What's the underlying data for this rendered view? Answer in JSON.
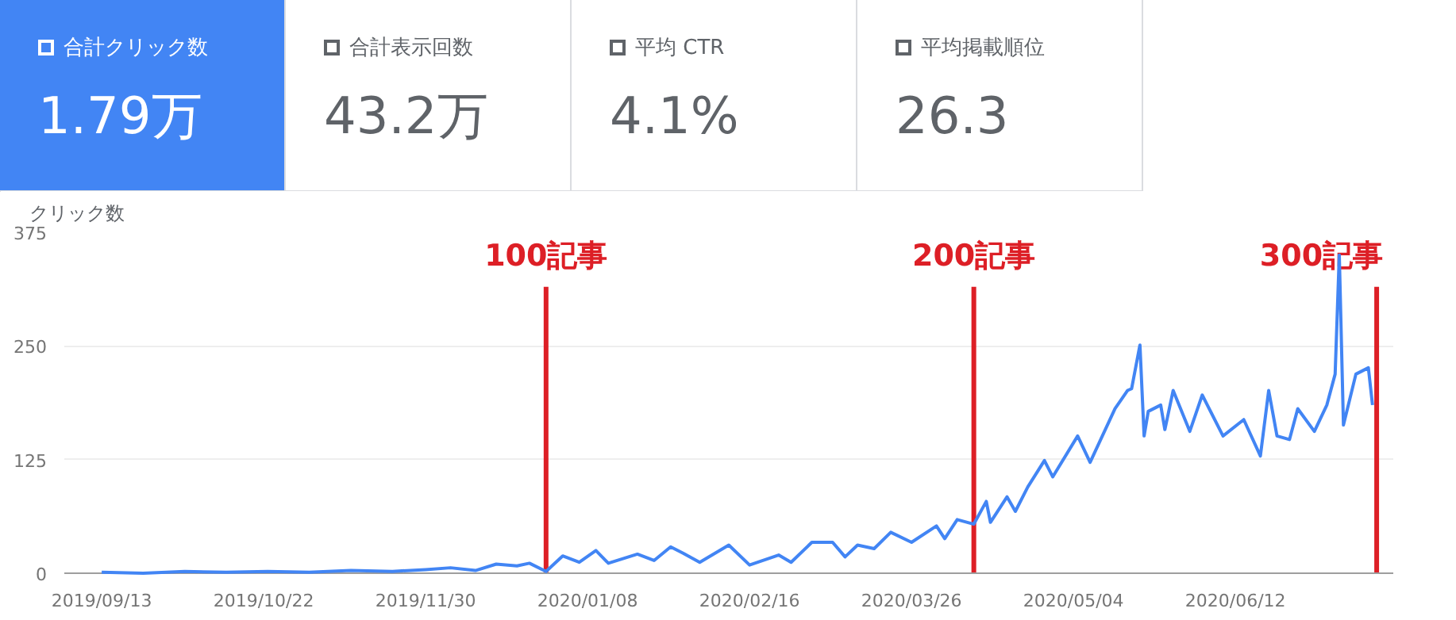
{
  "chart_data": [
    {
      "type": "other",
      "annotations": [
        "合計クリック数",
        "1.79万",
        "合計表示回数",
        "43.2万",
        "平均 CTR",
        "4.1%",
        "平均掲載順位",
        "26.3"
      ]
    },
    {
      "type": "line",
      "ylabel": "クリック数",
      "x": [
        "2019-09-13",
        "2019-09-23",
        "2019-10-03",
        "2019-10-13",
        "2019-10-23",
        "2019-11-02",
        "2019-11-12",
        "2019-11-22",
        "2019-11-30",
        "2019-12-06",
        "2019-12-12",
        "2019-12-17",
        "2019-12-22",
        "2019-12-25",
        "2019-12-29",
        "2020-01-02",
        "2020-01-06",
        "2020-01-10",
        "2020-01-13",
        "2020-01-20",
        "2020-01-24",
        "2020-01-28",
        "2020-01-31",
        "2020-02-04",
        "2020-02-11",
        "2020-02-16",
        "2020-02-23",
        "2020-02-26",
        "2020-03-02",
        "2020-03-07",
        "2020-03-10",
        "2020-03-13",
        "2020-03-17",
        "2020-03-21",
        "2020-03-26",
        "2020-04-01",
        "2020-04-03",
        "2020-04-06",
        "2020-04-10",
        "2020-04-13",
        "2020-04-14",
        "2020-04-18",
        "2020-04-20",
        "2020-04-23",
        "2020-04-27",
        "2020-04-29",
        "2020-05-05",
        "2020-05-08",
        "2020-05-14",
        "2020-05-17",
        "2020-05-18",
        "2020-05-20",
        "2020-05-21",
        "2020-05-22",
        "2020-05-25",
        "2020-05-26",
        "2020-05-28",
        "2020-06-01",
        "2020-06-04",
        "2020-06-09",
        "2020-06-14",
        "2020-06-18",
        "2020-06-20",
        "2020-06-22",
        "2020-06-25",
        "2020-06-27",
        "2020-07-01",
        "2020-07-04",
        "2020-07-06",
        "2020-07-07",
        "2020-07-08",
        "2020-07-11",
        "2020-07-14",
        "2020-07-15"
      ],
      "series": [
        {
          "color": "#4285f4",
          "values": [
            1,
            0,
            2,
            1,
            2,
            1,
            3,
            2,
            4,
            6,
            3,
            10,
            8,
            11,
            2,
            19,
            12,
            25,
            11,
            21,
            14,
            29,
            22,
            12,
            31,
            9,
            20,
            12,
            34,
            34,
            18,
            31,
            27,
            45,
            34,
            52,
            38,
            59,
            54,
            79,
            56,
            84,
            68,
            95,
            124,
            106,
            151,
            122,
            181,
            201,
            203,
            251,
            151,
            178,
            185,
            158,
            201,
            156,
            196,
            151,
            169,
            129,
            201,
            151,
            147,
            181,
            156,
            185,
            219,
            350,
            163,
            219,
            226,
            185
          ]
        }
      ],
      "xlim": [
        "2019-09-04",
        "2020-07-20"
      ],
      "xticks": [
        {
          "value": "2019-09-13",
          "label": "2019/09/13"
        },
        {
          "value": "2019-10-22",
          "label": "2019/10/22"
        },
        {
          "value": "2019-11-30",
          "label": "2019/11/30"
        },
        {
          "value": "2020-01-08",
          "label": "2020/01/08"
        },
        {
          "value": "2020-02-16",
          "label": "2020/02/16"
        },
        {
          "value": "2020-03-26",
          "label": "2020/03/26"
        },
        {
          "value": "2020-05-04",
          "label": "2020/05/04"
        },
        {
          "value": "2020-06-12",
          "label": "2020/06/12"
        }
      ],
      "ylim": [
        0,
        375
      ],
      "yticks": [
        0,
        125,
        250,
        375
      ],
      "grid": "y",
      "marker": "none",
      "line_style": "solid",
      "ref_lines": [
        {
          "axis": "x",
          "value": "2019-12-29",
          "label": "100記事",
          "color": "#dd1f26"
        },
        {
          "axis": "x",
          "value": "2020-04-10",
          "label": "200記事",
          "color": "#dd1f26"
        },
        {
          "axis": "x",
          "value": "2020-07-16",
          "label": "300記事",
          "color": "#dd1f26"
        }
      ]
    }
  ]
}
